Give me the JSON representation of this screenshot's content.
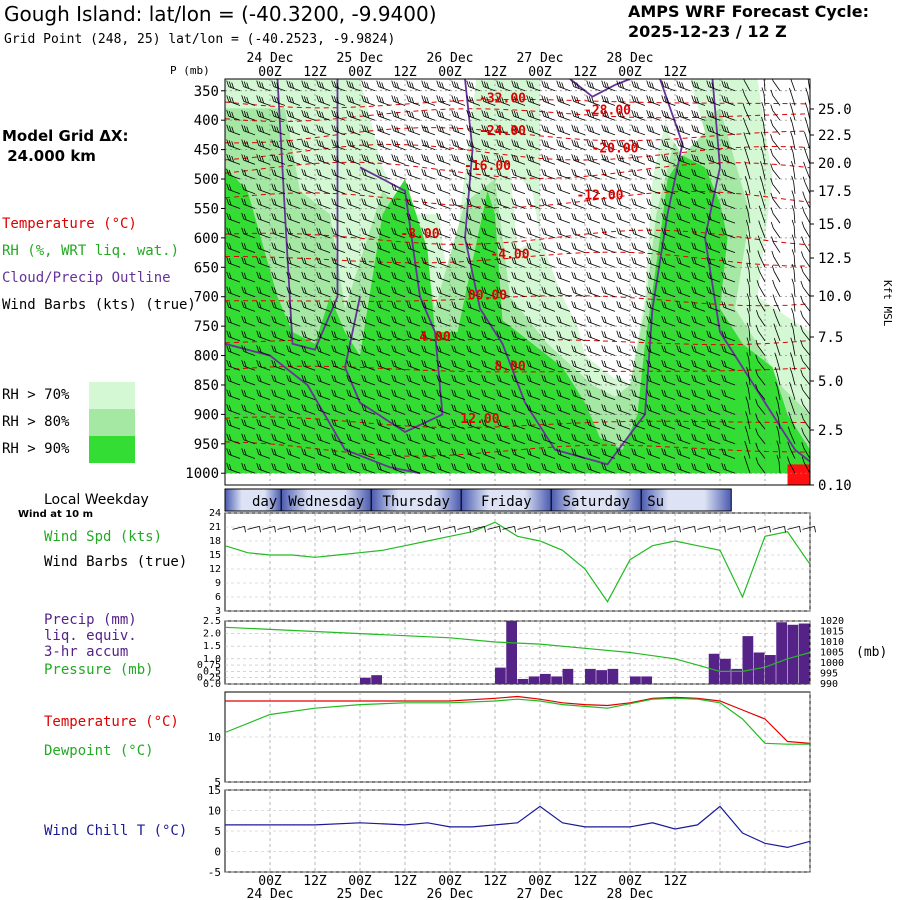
{
  "header": {
    "location": "Gough Island:",
    "latlon": "lat/lon = (-40.3200, -9.9400)",
    "grid_point": "Grid Point (248, 25) lat/lon = (-40.2523, -9.9824)",
    "cycle_title": "AMPS WRF Forecast Cycle:",
    "cycle_value": "2025-12-23 / 12  Z"
  },
  "colors": {
    "temperature": "#e00000",
    "rh": "#22bb22",
    "cloud": "#663399",
    "precip": "#552288",
    "dewpoint": "#22bb22",
    "windchill": "#1a1a99",
    "rh70": "#d4f8d4",
    "rh80": "#a4e8a4",
    "rh90": "#33dd33"
  },
  "legend": {
    "model_grid_label": "Model Grid ΔX:",
    "model_grid_value": " 24.000 km",
    "temperature": "Temperature (°C)",
    "rh": "RH (%, WRT liq. wat.)",
    "cloud": "Cloud/Precip Outline",
    "wind_barbs": "Wind Barbs (kts) (true)",
    "rh_levels": [
      "RH > 70%",
      "RH > 80%",
      "RH > 90%"
    ]
  },
  "time_axis": {
    "ticks": [
      "00Z",
      "12Z",
      "00Z",
      "12Z",
      "00Z",
      "12Z",
      "00Z",
      "12Z",
      "00Z",
      "12Z"
    ],
    "dates": [
      "24 Dec",
      "25 Dec",
      "26 Dec",
      "27 Dec",
      "28 Dec"
    ],
    "weekday_label": "Local Weekday",
    "weekdays": [
      "day",
      "Wednesday",
      "Thursday",
      "Friday",
      "Saturday",
      "Su"
    ]
  },
  "chart_data": [
    {
      "type": "contour",
      "id": "cross_section",
      "y_axis_left_label": "P (mb)",
      "pressure_levels": [
        350,
        400,
        450,
        500,
        550,
        600,
        650,
        700,
        750,
        800,
        850,
        900,
        950,
        1000
      ],
      "height_axis_label": "Kft MSL",
      "height_ticks": [
        "25.0",
        "22.5",
        "20.0",
        "17.5",
        "15.0",
        "12.5",
        "10.0",
        "7.5",
        "5.0",
        "2.5",
        "0.10"
      ],
      "temperature_contour_labels": [
        {
          "label": "-32.00",
          "hour": 62,
          "p": 370
        },
        {
          "label": "-28.00",
          "hour": 90,
          "p": 390
        },
        {
          "label": "-24.00",
          "hour": 62,
          "p": 425
        },
        {
          "label": "-20.00",
          "hour": 92,
          "p": 455
        },
        {
          "label": "-16.00",
          "hour": 58,
          "p": 485
        },
        {
          "label": "-12.00",
          "hour": 88,
          "p": 535
        },
        {
          "label": "-8.00",
          "hour": 40,
          "p": 600
        },
        {
          "label": "-4.00",
          "hour": 64,
          "p": 635
        },
        {
          "label": "00.00",
          "hour": 58,
          "p": 705
        },
        {
          "label": "4.00",
          "hour": 44,
          "p": 775
        },
        {
          "label": "8.00",
          "hour": 64,
          "p": 825
        },
        {
          "label": "12.00",
          "hour": 56,
          "p": 915
        }
      ]
    },
    {
      "type": "line",
      "id": "wind_speed",
      "title": "Wind Spd (kts)",
      "barbs_label": "Wind Barbs (true)",
      "sub_label": "Wind at 10 m",
      "ylim": [
        3,
        24
      ],
      "y_ticks": [
        3,
        6,
        9,
        12,
        15,
        18,
        21,
        24
      ],
      "x_hours": [
        -12,
        -6,
        0,
        6,
        12,
        18,
        24,
        30,
        36,
        42,
        48,
        54,
        60,
        66,
        72,
        78,
        84,
        90,
        96,
        102,
        108,
        114,
        120,
        126,
        132,
        138,
        144
      ],
      "values": [
        17,
        15.5,
        15,
        15,
        14.5,
        15,
        15.5,
        16,
        17,
        18,
        19,
        20,
        22,
        19,
        18,
        16,
        12,
        5,
        14,
        17,
        18,
        17,
        16,
        6,
        19,
        20,
        13
      ]
    },
    {
      "type": "bar",
      "id": "precip_pressure",
      "title": "Precip (mm)",
      "title2": "liq. equiv.",
      "title3": "3-hr accum",
      "pressure_label": "Pressure (mb)",
      "pressure_unit": "(mb)",
      "precip_ylim": [
        0,
        2.5
      ],
      "precip_ticks": [
        "0.0",
        "0.25",
        "0.5",
        "0.75",
        "1.0",
        "1.5",
        "2.0",
        "2.5"
      ],
      "pressure_ticks": [
        990,
        995,
        1000,
        1005,
        1010,
        1015,
        1020
      ],
      "bar_hours": [
        0,
        3,
        12,
        15,
        18,
        21,
        24,
        27,
        30,
        33,
        36,
        39,
        42,
        48,
        51,
        57,
        60,
        63,
        66,
        69,
        72,
        75,
        78,
        81,
        84,
        87,
        90,
        96,
        99,
        102,
        105,
        108,
        111,
        114,
        117,
        120,
        123,
        126,
        129,
        132,
        135,
        138,
        141
      ],
      "bar_values": [
        0,
        0,
        0,
        0,
        0,
        0,
        0.25,
        0.35,
        0,
        0,
        0,
        0,
        0,
        0,
        0,
        0,
        0.65,
        2.5,
        0.2,
        0.3,
        0.4,
        0.3,
        0.6,
        0,
        0.6,
        0.55,
        0.6,
        0.3,
        0.3,
        0,
        0,
        0,
        0,
        0,
        1.2,
        1.0,
        0.6,
        1.9,
        1.25,
        1.15,
        2.45,
        2.35,
        2.4
      ],
      "pressure_hours": [
        -12,
        0,
        12,
        24,
        36,
        48,
        60,
        72,
        84,
        96,
        108,
        114,
        120,
        126,
        132,
        138,
        144
      ],
      "pressure_values": [
        1017,
        1016,
        1015,
        1014,
        1013,
        1012,
        1010,
        1009,
        1007,
        1005,
        1002,
        999,
        996,
        996,
        998,
        1002,
        1005
      ]
    },
    {
      "type": "line",
      "id": "temp_dew",
      "temperature_label": "Temperature (°C)",
      "dewpoint_label": "Dewpoint (°C)",
      "ylim": [
        5,
        15
      ],
      "y_ticks": [
        5,
        10
      ],
      "x_hours": [
        -12,
        0,
        12,
        24,
        36,
        48,
        60,
        66,
        72,
        78,
        84,
        90,
        96,
        102,
        108,
        114,
        120,
        126,
        132,
        138,
        144
      ],
      "temperature": [
        14,
        14,
        14,
        14,
        14,
        14,
        14.3,
        14.5,
        14.2,
        13.8,
        13.6,
        13.5,
        13.8,
        14.3,
        14.4,
        14.3,
        14,
        13,
        12,
        9.5,
        9.3
      ],
      "dewpoint": [
        10.5,
        12.5,
        13.2,
        13.6,
        13.8,
        13.8,
        14,
        14.2,
        14,
        13.6,
        13.4,
        13.2,
        13.7,
        14.2,
        14.3,
        14.2,
        13.8,
        12,
        9.3,
        9.2,
        9.2
      ]
    },
    {
      "type": "line",
      "id": "wind_chill",
      "title": "Wind Chill T (°C)",
      "ylim": [
        -5,
        15
      ],
      "y_ticks": [
        -5,
        0,
        5,
        10,
        15
      ],
      "x_hours": [
        -12,
        0,
        12,
        24,
        36,
        42,
        48,
        54,
        60,
        66,
        72,
        78,
        84,
        90,
        96,
        102,
        108,
        114,
        120,
        126,
        132,
        138,
        144
      ],
      "values": [
        6.5,
        6.5,
        6.5,
        7,
        6.5,
        7,
        6,
        6,
        6.5,
        7,
        11,
        7,
        6,
        6,
        6,
        7,
        5.5,
        6.5,
        11,
        4.5,
        2,
        1,
        2.5
      ]
    }
  ]
}
